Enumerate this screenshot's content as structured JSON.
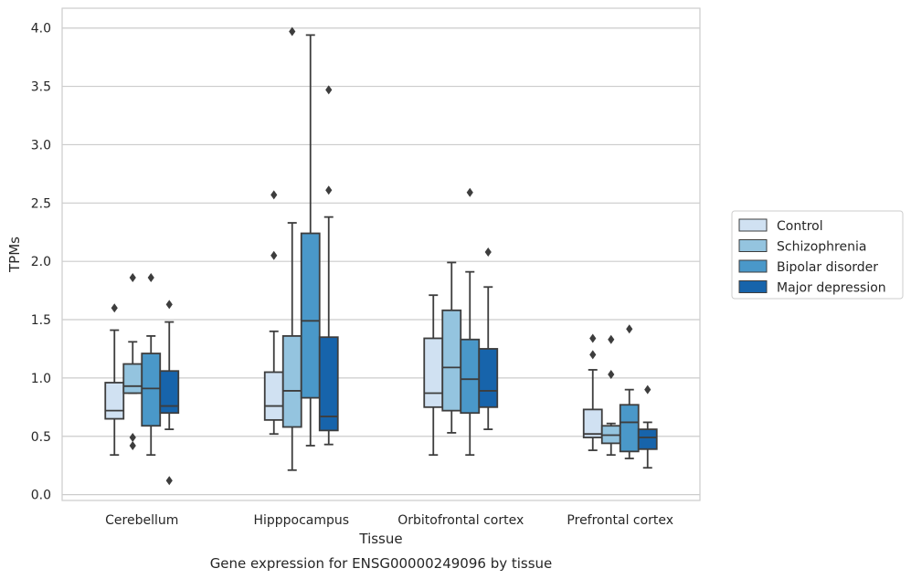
{
  "chart_data": {
    "type": "box",
    "caption": "Gene expression for ENSG00000249096 by tissue",
    "xlabel": "Tissue",
    "ylabel": "TPMs",
    "ylim": [
      -0.05,
      4.17
    ],
    "yticks": [
      "0.0",
      "0.5",
      "1.0",
      "1.5",
      "2.0",
      "2.5",
      "3.0",
      "3.5",
      "4.0"
    ],
    "categories": [
      "Cerebellum",
      "Hipppocampus",
      "Orbitofrontal cortex",
      "Prefrontal cortex"
    ],
    "grid": "horizontal",
    "legend_position": "right-center",
    "series": [
      {
        "name": "Control",
        "color": "#d0e1f2",
        "boxes": [
          {
            "whislo": 0.34,
            "q1": 0.65,
            "med": 0.72,
            "q3": 0.96,
            "whishi": 1.41,
            "fliers": [
              1.6
            ]
          },
          {
            "whislo": 0.52,
            "q1": 0.64,
            "med": 0.76,
            "q3": 1.05,
            "whishi": 1.4,
            "fliers": [
              2.05,
              2.57
            ]
          },
          {
            "whislo": 0.34,
            "q1": 0.75,
            "med": 0.87,
            "q3": 1.34,
            "whishi": 1.71,
            "fliers": []
          },
          {
            "whislo": 0.38,
            "q1": 0.49,
            "med": 0.52,
            "q3": 0.73,
            "whishi": 1.07,
            "fliers": [
              1.2,
              1.34
            ]
          }
        ]
      },
      {
        "name": "Schizophrenia",
        "color": "#94c4df",
        "boxes": [
          {
            "whislo": 0.87,
            "q1": 0.87,
            "med": 0.93,
            "q3": 1.12,
            "whishi": 1.31,
            "fliers": [
              0.42,
              0.49,
              1.86
            ]
          },
          {
            "whislo": 0.21,
            "q1": 0.58,
            "med": 0.89,
            "q3": 1.36,
            "whishi": 2.33,
            "fliers": [
              3.97
            ]
          },
          {
            "whislo": 0.53,
            "q1": 0.72,
            "med": 1.09,
            "q3": 1.58,
            "whishi": 1.99,
            "fliers": []
          },
          {
            "whislo": 0.34,
            "q1": 0.44,
            "med": 0.51,
            "q3": 0.59,
            "whishi": 0.61,
            "fliers": [
              1.03,
              1.33
            ]
          }
        ]
      },
      {
        "name": "Bipolar disorder",
        "color": "#4a98c9",
        "boxes": [
          {
            "whislo": 0.34,
            "q1": 0.59,
            "med": 0.91,
            "q3": 1.21,
            "whishi": 1.36,
            "fliers": [
              1.86
            ]
          },
          {
            "whislo": 0.42,
            "q1": 0.83,
            "med": 1.49,
            "q3": 2.24,
            "whishi": 3.94,
            "fliers": []
          },
          {
            "whislo": 0.34,
            "q1": 0.7,
            "med": 0.99,
            "q3": 1.33,
            "whishi": 1.91,
            "fliers": [
              2.59
            ]
          },
          {
            "whislo": 0.31,
            "q1": 0.37,
            "med": 0.62,
            "q3": 0.77,
            "whishi": 0.9,
            "fliers": [
              1.42
            ]
          }
        ]
      },
      {
        "name": "Major depression",
        "color": "#1764ab",
        "boxes": [
          {
            "whislo": 0.56,
            "q1": 0.7,
            "med": 0.76,
            "q3": 1.06,
            "whishi": 1.48,
            "fliers": [
              0.12,
              1.63
            ]
          },
          {
            "whislo": 0.43,
            "q1": 0.55,
            "med": 0.67,
            "q3": 1.35,
            "whishi": 2.38,
            "fliers": [
              2.61,
              3.47
            ]
          },
          {
            "whislo": 0.56,
            "q1": 0.75,
            "med": 0.89,
            "q3": 1.25,
            "whishi": 1.78,
            "fliers": [
              2.08
            ]
          },
          {
            "whislo": 0.23,
            "q1": 0.39,
            "med": 0.49,
            "q3": 0.56,
            "whishi": 0.62,
            "fliers": [
              0.9
            ]
          }
        ]
      }
    ]
  }
}
